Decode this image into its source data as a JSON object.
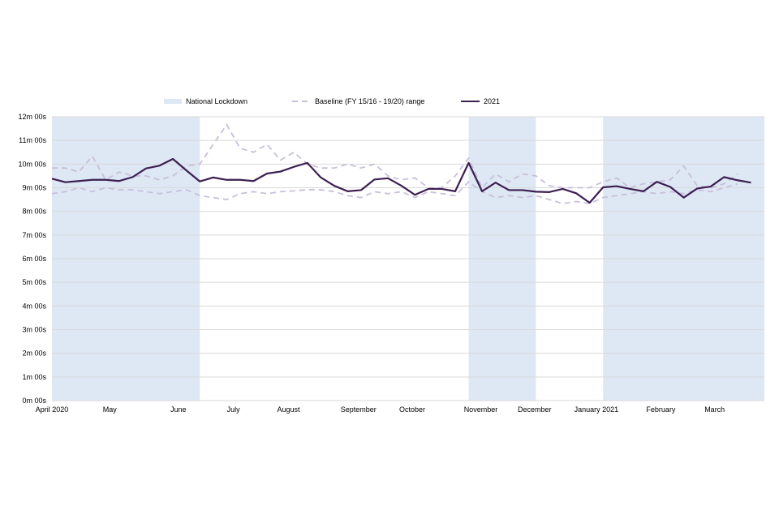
{
  "chart_data": {
    "type": "line",
    "x_tick_labels": [
      "April 2020",
      "May",
      "June",
      "July",
      "August",
      "September",
      "October",
      "November",
      "December",
      "January 2021",
      "February",
      "March"
    ],
    "y_tick_labels": [
      "0m 00s",
      "1m 00s",
      "2m 00s",
      "3m 00s",
      "4m 00s",
      "5m 00s",
      "6m 00s",
      "7m 00s",
      "8m 00s",
      "9m 00s",
      "10m 00s",
      "11m 00s",
      "12m 00s"
    ],
    "ylim_seconds": [
      0,
      720
    ],
    "grid": true,
    "legend_position": "top",
    "lockdown_periods_weeks": [
      [
        0,
        11
      ],
      [
        31,
        36
      ],
      [
        41,
        53
      ]
    ],
    "legend": {
      "lockdown": "National Lockdown",
      "baseline": "Baseline (FY 15/16 - 19/20) range",
      "line_2021": "2021"
    },
    "colors": {
      "lockdown": "#dde8f4",
      "baseline": "#c9bfdb",
      "line_2021": "#3d1f52",
      "grid": "#d9d9d9"
    },
    "series": [
      {
        "name": "Baseline (FY 15/16 - 19/20) range",
        "role": "upper",
        "values_seconds": [
          590,
          590,
          580,
          620,
          560,
          580,
          570,
          570,
          560,
          570,
          595,
          600,
          650,
          700,
          640,
          630,
          650,
          610,
          630,
          600,
          590,
          590,
          600,
          590,
          600,
          570,
          560,
          565,
          540,
          540,
          570,
          615,
          540,
          575,
          555,
          575,
          570,
          545,
          540,
          540,
          540,
          555,
          565,
          540,
          550,
          555,
          560,
          595,
          545,
          540,
          550,
          575
        ]
      },
      {
        "name": "Baseline (FY 15/16 - 19/20) range",
        "role": "lower",
        "values_seconds": [
          525,
          530,
          540,
          530,
          540,
          535,
          535,
          530,
          525,
          530,
          535,
          520,
          515,
          510,
          525,
          530,
          525,
          530,
          532,
          535,
          535,
          530,
          520,
          515,
          530,
          525,
          530,
          515,
          530,
          525,
          520,
          555,
          530,
          515,
          520,
          515,
          520,
          510,
          500,
          505,
          500,
          515,
          520,
          525,
          530,
          525,
          530,
          525,
          535,
          530,
          540,
          550
        ]
      },
      {
        "name": "2021",
        "role": "main",
        "values_seconds": [
          563,
          554,
          557,
          560,
          560,
          557,
          567,
          589,
          596,
          613,
          584,
          556,
          566,
          560,
          560,
          557,
          576,
          581,
          593,
          603,
          566,
          545,
          531,
          534,
          561,
          564,
          545,
          522,
          537,
          537,
          531,
          603,
          531,
          553,
          534,
          534,
          530,
          529,
          537,
          526,
          502,
          541,
          544,
          537,
          531,
          555,
          542,
          515,
          538,
          543,
          567,
          559,
          553
        ]
      }
    ]
  }
}
